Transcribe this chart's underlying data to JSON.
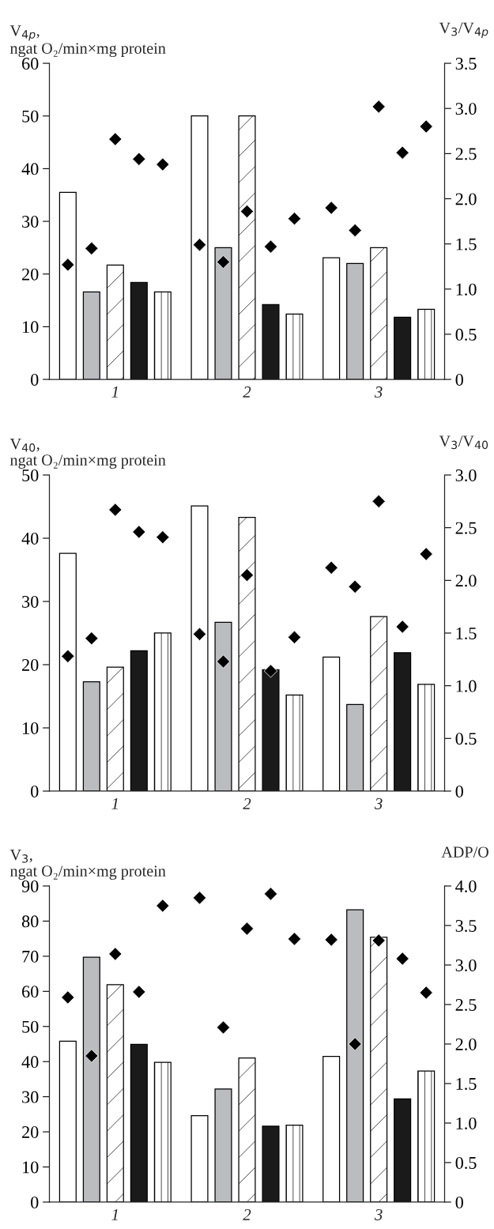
{
  "chart_data": [
    {
      "type": "bar",
      "categories": [
        "1",
        "2",
        "3"
      ],
      "ylabel": "V$_{4p}$,\nngat O₂/min×mg protein",
      "y2label": "V$_{3}$/V$_{4p}$",
      "ylim": [
        0,
        60
      ],
      "yticks": [
        0,
        10,
        20,
        30,
        40,
        50,
        60
      ],
      "y2lim": [
        0,
        3.5
      ],
      "y2ticks": [
        0,
        0.5,
        {
          "value": 1,
          "label": "1.0"
        },
        1.5,
        {
          "value": 2,
          "label": "2.0"
        },
        2.5,
        {
          "value": 3,
          "label": "3.0"
        },
        3.5
      ],
      "grid": false,
      "legend": false,
      "series": [
        {
          "color": "#ffffff",
          "values": [
            35.5,
            50,
            23.1
          ]
        },
        {
          "color": "#bbbcc0",
          "values": [
            16.6,
            25,
            22
          ]
        },
        {
          "color": "#ffffff",
          "values": [
            21.7,
            50,
            25
          ]
        },
        {
          "color": "#1a1a1a",
          "values": [
            18.4,
            14.2,
            11.8
          ]
        },
        {
          "color": "#ffffff",
          "values": [
            16.6,
            12.4,
            13.3
          ]
        },
        {
          "type": "scatter",
          "axis": "y2",
          "marker": "diamond",
          "color": "#000000",
          "values": [
            1.27,
            1.49,
            1.9
          ]
        },
        {
          "type": "scatter",
          "axis": "y2",
          "marker": "diamond",
          "color": "#000000",
          "values": [
            1.45,
            1.3,
            1.65
          ]
        },
        {
          "type": "scatter",
          "axis": "y2",
          "marker": "diamond",
          "color": "#000000",
          "values": [
            2.66,
            1.86,
            3.02
          ]
        },
        {
          "type": "scatter",
          "axis": "y2",
          "marker": "diamond",
          "color": "#000000",
          "values": [
            2.44,
            1.47,
            2.51
          ]
        },
        {
          "type": "scatter",
          "axis": "y2",
          "marker": "diamond",
          "color": "#000000",
          "values": [
            2.38,
            1.78,
            2.8
          ]
        }
      ]
    },
    {
      "type": "bar",
      "categories": [
        "1",
        "2",
        "3"
      ],
      "ylabel": "V$_{40}$,\nngat O₂/min×mg protein",
      "y2label": "V$_{3}$/V$_{40}$",
      "ylim": [
        0,
        50
      ],
      "yticks": [
        0,
        10,
        20,
        30,
        40,
        50
      ],
      "y2lim": [
        0,
        3.0
      ],
      "y2ticks": [
        0,
        0.5,
        {
          "value": 1,
          "label": "1.0"
        },
        1.5,
        {
          "value": 2,
          "label": "2.0"
        },
        2.5,
        {
          "value": 3,
          "label": "3.0"
        }
      ],
      "grid": false,
      "legend": false,
      "series": [
        {
          "color": "#ffffff",
          "values": [
            37.6,
            45.1,
            21.2
          ]
        },
        {
          "color": "#bbbcc0",
          "values": [
            17.3,
            26.7,
            13.7
          ]
        },
        {
          "color": "#ffffff",
          "values": [
            19.6,
            43.3,
            27.6
          ]
        },
        {
          "color": "#1a1a1a",
          "values": [
            22.2,
            19.2,
            21.9
          ]
        },
        {
          "color": "#ffffff",
          "values": [
            25,
            15.2,
            16.9
          ]
        },
        {
          "type": "scatter",
          "axis": "y2",
          "marker": "diamond",
          "color": "#000000",
          "values": [
            1.28,
            1.49,
            2.12
          ]
        },
        {
          "type": "scatter",
          "axis": "y2",
          "marker": "diamond",
          "color": "#000000",
          "values": [
            1.45,
            1.23,
            1.94
          ]
        },
        {
          "type": "scatter",
          "axis": "y2",
          "marker": "diamond",
          "color": "#000000",
          "values": [
            2.67,
            2.05,
            2.75
          ]
        },
        {
          "type": "scatter",
          "axis": "y2",
          "marker": "diamond",
          "color": "#000000",
          "values": [
            2.46,
            1.14,
            1.56
          ]
        },
        {
          "type": "scatter",
          "axis": "y2",
          "marker": "diamond",
          "color": "#000000",
          "values": [
            2.41,
            1.46,
            2.25
          ]
        }
      ]
    },
    {
      "type": "bar",
      "categories": [
        "1",
        "2",
        "3"
      ],
      "ylabel": "V$_{3}$,\nngat O₂/min×mg protein",
      "y2label": "ADP/O",
      "ylim": [
        0,
        90
      ],
      "yticks": [
        0,
        10,
        20,
        30,
        40,
        50,
        60,
        70,
        80,
        90
      ],
      "y2lim": [
        0,
        4.0
      ],
      "y2ticks": [
        0,
        0.5,
        {
          "value": 1,
          "label": "1.0"
        },
        1.5,
        {
          "value": 2,
          "label": "2.0"
        },
        2.5,
        {
          "value": 3,
          "label": "3.0"
        },
        3.5,
        {
          "value": 4,
          "label": "4.0"
        }
      ],
      "grid": false,
      "legend": false,
      "series": [
        {
          "color": "#ffffff",
          "values": [
            45.8,
            24.6,
            41.5
          ]
        },
        {
          "color": "#bbbcc0",
          "values": [
            69.7,
            32.2,
            83.2
          ]
        },
        {
          "color": "#ffffff",
          "values": [
            61.9,
            41,
            75.4
          ]
        },
        {
          "color": "#1a1a1a",
          "values": [
            44.9,
            21.6,
            29.4
          ]
        },
        {
          "color": "#ffffff",
          "values": [
            39.8,
            21.9,
            37.3
          ]
        },
        {
          "type": "scatter",
          "axis": "y2",
          "marker": "diamond",
          "color": "#000000",
          "values": [
            2.59,
            3.85,
            3.32
          ]
        },
        {
          "type": "scatter",
          "axis": "y2",
          "marker": "diamond",
          "color": "#000000",
          "values": [
            1.85,
            2.21,
            2.0
          ]
        },
        {
          "type": "scatter",
          "axis": "y2",
          "marker": "diamond",
          "color": "#000000",
          "values": [
            3.14,
            3.46,
            3.31
          ]
        },
        {
          "type": "scatter",
          "axis": "y2",
          "marker": "diamond",
          "color": "#000000",
          "values": [
            2.66,
            3.9,
            3.08
          ]
        },
        {
          "type": "scatter",
          "axis": "y2",
          "marker": "diamond",
          "color": "#000000",
          "values": [
            3.75,
            3.33,
            2.65
          ]
        }
      ]
    }
  ]
}
